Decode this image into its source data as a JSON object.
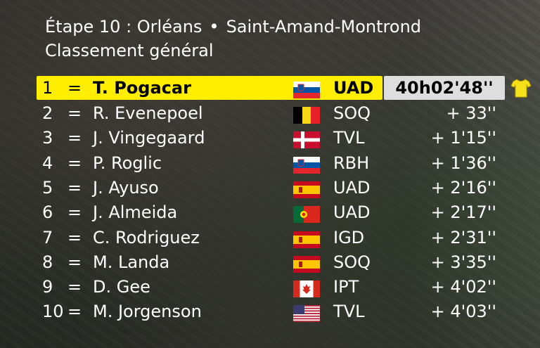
{
  "header": {
    "stage": "Étape 10 : Orléans",
    "separator": "•",
    "finish": "Saint-Amand-Montrond",
    "subtitle": "Classement général"
  },
  "colors": {
    "leader_bg": "#ffee00",
    "time_bg": "#dedede",
    "text": "#ffffff"
  },
  "leader": {
    "pos": "1",
    "eq": "=",
    "name": "T. Pogacar",
    "flag": "slovenia-flag",
    "team": "UAD",
    "time": "40h02'48''",
    "jersey": "yellow-jersey-icon"
  },
  "rows": [
    {
      "pos": "2",
      "eq": "=",
      "name": "R. Evenepoel",
      "flag": "belgium-flag",
      "team": "SOQ",
      "gap": "+ 33''"
    },
    {
      "pos": "3",
      "eq": "=",
      "name": "J. Vingegaard",
      "flag": "denmark-flag",
      "team": "TVL",
      "gap": "+ 1'15''"
    },
    {
      "pos": "4",
      "eq": "=",
      "name": "P. Roglic",
      "flag": "slovenia-flag",
      "team": "RBH",
      "gap": "+ 1'36''"
    },
    {
      "pos": "5",
      "eq": "=",
      "name": "J. Ayuso",
      "flag": "spain-flag",
      "team": "UAD",
      "gap": "+ 2'16''"
    },
    {
      "pos": "6",
      "eq": "=",
      "name": "J. Almeida",
      "flag": "portugal-flag",
      "team": "UAD",
      "gap": "+ 2'17''"
    },
    {
      "pos": "7",
      "eq": "=",
      "name": "C. Rodriguez",
      "flag": "spain-flag",
      "team": "IGD",
      "gap": "+ 2'31''"
    },
    {
      "pos": "8",
      "eq": "=",
      "name": "M. Landa",
      "flag": "spain-flag",
      "team": "SOQ",
      "gap": "+ 3'35''"
    },
    {
      "pos": "9",
      "eq": "=",
      "name": "D. Gee",
      "flag": "canada-flag",
      "team": "IPT",
      "gap": "+ 4'02''"
    },
    {
      "pos": "10",
      "eq": "=",
      "name": "M. Jorgenson",
      "flag": "usa-flag",
      "team": "TVL",
      "gap": "+ 4'03''"
    }
  ]
}
